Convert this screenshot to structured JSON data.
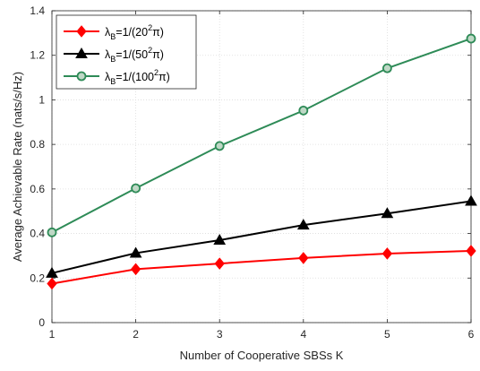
{
  "chart_data": {
    "type": "line",
    "xlabel": "Number of Cooperative SBSs K",
    "ylabel": "Average Achievable Rate (nats/s/Hz)",
    "x": [
      1,
      2,
      3,
      4,
      5,
      6
    ],
    "xlim": [
      1,
      6
    ],
    "ylim": [
      0,
      1.4
    ],
    "xticks": [
      "1",
      "2",
      "3",
      "4",
      "5",
      "6"
    ],
    "yticks": [
      "0",
      "0.2",
      "0.4",
      "0.6",
      "0.8",
      "1",
      "1.2",
      "1.4"
    ],
    "grid": true,
    "legend_position": "top-left",
    "series": [
      {
        "name": "λB=1/(20²π)",
        "legend": {
          "lambda": "λ",
          "sub": "B",
          "pre": "=1/(20",
          "sup": "2",
          "post": "π)"
        },
        "color": "#ff0000",
        "marker": "diamond",
        "values": [
          0.175,
          0.24,
          0.265,
          0.29,
          0.31,
          0.322
        ]
      },
      {
        "name": "λB=1/(50²π)",
        "legend": {
          "lambda": "λ",
          "sub": "B",
          "pre": "=1/(50",
          "sup": "2",
          "post": "π)"
        },
        "color": "#000000",
        "marker": "triangle",
        "values": [
          0.222,
          0.312,
          0.37,
          0.438,
          0.49,
          0.545
        ]
      },
      {
        "name": "λB=1/(100²π)",
        "legend": {
          "lambda": "λ",
          "sub": "B",
          "pre": "=1/(100",
          "sup": "2",
          "post": "π)"
        },
        "color": "#2e8b57",
        "marker": "circle",
        "values": [
          0.405,
          0.603,
          0.793,
          0.952,
          1.142,
          1.275
        ]
      }
    ]
  }
}
